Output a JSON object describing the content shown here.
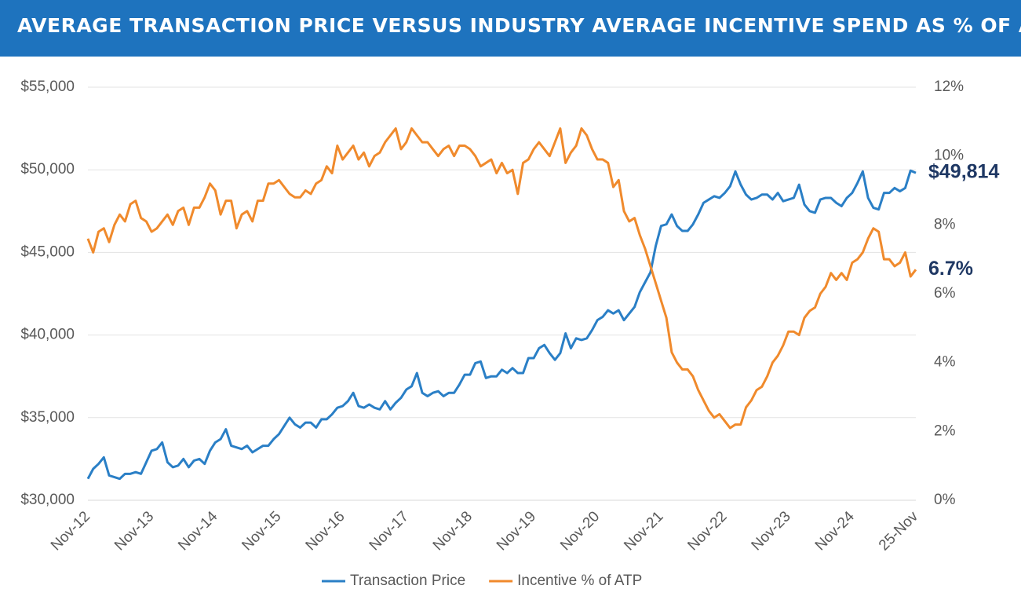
{
  "header": {
    "title": "AVERAGE TRANSACTION PRICE VERSUS INDUSTRY AVERAGE INCENTIVE SPEND AS % OF ATP"
  },
  "chart_data": {
    "type": "line",
    "categories": [
      "Nov-12",
      null,
      null,
      null,
      null,
      null,
      null,
      null,
      null,
      null,
      null,
      null,
      "Nov-13",
      null,
      null,
      null,
      null,
      null,
      null,
      null,
      null,
      null,
      null,
      null,
      "Nov-14",
      null,
      null,
      null,
      null,
      null,
      null,
      null,
      null,
      null,
      null,
      null,
      "Nov-15",
      null,
      null,
      null,
      null,
      null,
      null,
      null,
      null,
      null,
      null,
      null,
      "Nov-16",
      null,
      null,
      null,
      null,
      null,
      null,
      null,
      null,
      null,
      null,
      null,
      "Nov-17",
      null,
      null,
      null,
      null,
      null,
      null,
      null,
      null,
      null,
      null,
      null,
      "Nov-18",
      null,
      null,
      null,
      null,
      null,
      null,
      null,
      null,
      null,
      null,
      null,
      "Nov-19",
      null,
      null,
      null,
      null,
      null,
      null,
      null,
      null,
      null,
      null,
      null,
      "Nov-20",
      null,
      null,
      null,
      null,
      null,
      null,
      null,
      null,
      null,
      null,
      null,
      "Nov-21",
      null,
      null,
      null,
      null,
      null,
      null,
      null,
      null,
      null,
      null,
      null,
      "Nov-22",
      null,
      null,
      null,
      null,
      null,
      null,
      null,
      null,
      null,
      null,
      null,
      "Nov-23",
      null,
      null,
      null,
      null,
      null,
      null,
      null,
      null,
      null,
      null,
      null,
      "Nov-24",
      null,
      null,
      null,
      null,
      null,
      null,
      null,
      null,
      null,
      null,
      null,
      "25-Nov"
    ],
    "series": [
      {
        "name": "Transaction Price",
        "color": "#2a7fc6",
        "axis": "y",
        "values": [
          31300,
          31900,
          32200,
          32600,
          31500,
          31400,
          31300,
          31600,
          31600,
          31700,
          31600,
          32300,
          33000,
          33100,
          33500,
          32300,
          32000,
          32100,
          32500,
          32000,
          32400,
          32500,
          32200,
          33000,
          33500,
          33700,
          34300,
          33300,
          33200,
          33100,
          33300,
          32900,
          33100,
          33300,
          33300,
          33700,
          34000,
          34500,
          35000,
          34600,
          34400,
          34700,
          34700,
          34400,
          34900,
          34900,
          35200,
          35600,
          35700,
          36000,
          36500,
          35700,
          35600,
          35800,
          35600,
          35500,
          36000,
          35500,
          35900,
          36200,
          36700,
          36900,
          37700,
          36500,
          36300,
          36500,
          36600,
          36300,
          36500,
          36500,
          37000,
          37600,
          37600,
          38300,
          38400,
          37400,
          37500,
          37500,
          37900,
          37700,
          38000,
          37700,
          37700,
          38600,
          38600,
          39200,
          39400,
          38900,
          38500,
          38900,
          40100,
          39200,
          39800,
          39700,
          39800,
          40300,
          40900,
          41100,
          41500,
          41300,
          41500,
          40900,
          41300,
          41700,
          42600,
          43200,
          43800,
          45400,
          46600,
          46700,
          47300,
          46600,
          46300,
          46300,
          46700,
          47300,
          48000,
          48200,
          48400,
          48300,
          48600,
          49000,
          49900,
          49100,
          48500,
          48200,
          48300,
          48500,
          48500,
          48200,
          48600,
          48100,
          48200,
          48300,
          49100,
          47900,
          47500,
          47400,
          48200,
          48300,
          48300,
          48000,
          47800,
          48300,
          48600,
          49200,
          49900,
          48300,
          47700,
          47600,
          48600,
          48600,
          48900,
          48700,
          48900,
          49950,
          49814
        ],
        "value_labels": [
          null,
          null,
          null,
          null,
          null,
          null,
          null,
          null,
          null,
          null,
          null,
          null,
          null,
          null,
          null,
          null,
          null,
          null,
          null,
          null,
          null,
          null,
          null,
          null,
          null,
          null,
          null,
          null,
          null,
          null,
          null,
          null,
          null,
          null,
          null,
          null,
          null,
          null,
          null,
          null,
          null,
          null,
          null,
          null,
          null,
          null,
          null,
          null,
          null,
          null,
          null,
          null,
          null,
          null,
          null,
          null,
          null,
          null,
          null,
          null,
          null,
          null,
          null,
          null,
          null,
          null,
          null,
          null,
          null,
          null,
          null,
          null,
          null,
          null,
          null,
          null,
          null,
          null,
          null,
          null,
          null,
          null,
          null,
          null,
          null,
          null,
          null,
          null,
          null,
          null,
          null,
          null,
          null,
          null,
          null,
          null,
          null,
          null,
          null,
          null,
          null,
          null,
          null,
          null,
          null,
          null,
          null,
          null,
          null,
          null,
          null,
          null,
          null,
          null,
          null,
          null,
          null,
          null,
          null,
          null,
          null,
          null,
          null,
          null,
          null,
          null,
          null,
          null,
          null,
          null,
          null,
          null,
          null,
          null,
          null,
          null,
          null,
          null,
          null,
          null,
          null,
          null,
          null,
          null,
          null,
          null,
          null,
          null,
          null,
          null,
          null,
          null,
          null,
          null,
          null,
          null,
          "$49,814"
        ]
      },
      {
        "name": "Incentive % of ATP",
        "color": "#f08a2c",
        "axis": "y2",
        "values": [
          7.6,
          7.2,
          7.8,
          7.9,
          7.5,
          8.0,
          8.3,
          8.1,
          8.6,
          8.7,
          8.2,
          8.1,
          7.8,
          7.9,
          8.1,
          8.3,
          8.0,
          8.4,
          8.5,
          8.0,
          8.5,
          8.5,
          8.8,
          9.2,
          9.0,
          8.3,
          8.7,
          8.7,
          7.9,
          8.3,
          8.4,
          8.1,
          8.7,
          8.7,
          9.2,
          9.2,
          9.3,
          9.1,
          8.9,
          8.8,
          8.8,
          9.0,
          8.9,
          9.2,
          9.3,
          9.7,
          9.5,
          10.3,
          9.9,
          10.1,
          10.3,
          9.9,
          10.1,
          9.7,
          10.0,
          10.1,
          10.4,
          10.6,
          10.8,
          10.2,
          10.4,
          10.8,
          10.6,
          10.4,
          10.4,
          10.2,
          10.0,
          10.2,
          10.3,
          10.0,
          10.3,
          10.3,
          10.2,
          10.0,
          9.7,
          9.8,
          9.9,
          9.5,
          9.8,
          9.5,
          9.6,
          8.9,
          9.8,
          9.9,
          10.2,
          10.4,
          10.2,
          10.0,
          10.4,
          10.8,
          9.8,
          10.1,
          10.3,
          10.8,
          10.6,
          10.2,
          9.9,
          9.9,
          9.8,
          9.1,
          9.3,
          8.4,
          8.1,
          8.2,
          7.7,
          7.3,
          6.8,
          6.3,
          5.8,
          5.3,
          4.3,
          4.0,
          3.8,
          3.8,
          3.6,
          3.2,
          2.9,
          2.6,
          2.4,
          2.5,
          2.3,
          2.1,
          2.2,
          2.2,
          2.7,
          2.9,
          3.2,
          3.3,
          3.6,
          4.0,
          4.2,
          4.5,
          4.9,
          4.9,
          4.8,
          5.3,
          5.5,
          5.6,
          6.0,
          6.2,
          6.6,
          6.4,
          6.6,
          6.4,
          6.9,
          7.0,
          7.2,
          7.6,
          7.9,
          7.8,
          7.0,
          7.0,
          6.8,
          6.9,
          7.2,
          6.5,
          6.7
        ],
        "value_labels": [
          null,
          null,
          null,
          null,
          null,
          null,
          null,
          null,
          null,
          null,
          null,
          null,
          null,
          null,
          null,
          null,
          null,
          null,
          null,
          null,
          null,
          null,
          null,
          null,
          null,
          null,
          null,
          null,
          null,
          null,
          null,
          null,
          null,
          null,
          null,
          null,
          null,
          null,
          null,
          null,
          null,
          null,
          null,
          null,
          null,
          null,
          null,
          null,
          null,
          null,
          null,
          null,
          null,
          null,
          null,
          null,
          null,
          null,
          null,
          null,
          null,
          null,
          null,
          null,
          null,
          null,
          null,
          null,
          null,
          null,
          null,
          null,
          null,
          null,
          null,
          null,
          null,
          null,
          null,
          null,
          null,
          null,
          null,
          null,
          null,
          null,
          null,
          null,
          null,
          null,
          null,
          null,
          null,
          null,
          null,
          null,
          null,
          null,
          null,
          null,
          null,
          null,
          null,
          null,
          null,
          null,
          null,
          null,
          null,
          null,
          null,
          null,
          null,
          null,
          null,
          null,
          null,
          null,
          null,
          null,
          null,
          null,
          null,
          null,
          null,
          null,
          null,
          null,
          null,
          null,
          null,
          null,
          null,
          null,
          null,
          null,
          null,
          null,
          null,
          null,
          null,
          null,
          null,
          null,
          null,
          null,
          null,
          null,
          null,
          null,
          null,
          null,
          null,
          null,
          null,
          null,
          "6.7%"
        ]
      }
    ],
    "ylim": [
      30000,
      55000
    ],
    "yticks": [
      {
        "value": 30000,
        "label": "$30,000"
      },
      {
        "value": 35000,
        "label": "$35,000"
      },
      {
        "value": 40000,
        "label": "$40,000"
      },
      {
        "value": 45000,
        "label": "$45,000"
      },
      {
        "value": 50000,
        "label": "$50,000"
      },
      {
        "value": 55000,
        "label": "$55,000"
      }
    ],
    "y2lim": [
      0,
      12
    ],
    "y2ticks": [
      {
        "value": 0,
        "label": "0%"
      },
      {
        "value": 2,
        "label": "2%"
      },
      {
        "value": 4,
        "label": "4%"
      },
      {
        "value": 6,
        "label": "6%"
      },
      {
        "value": 8,
        "label": "8%"
      },
      {
        "value": 10,
        "label": "10%"
      },
      {
        "value": 12,
        "label": "12%"
      }
    ],
    "grid": true,
    "legend": "bottom"
  }
}
